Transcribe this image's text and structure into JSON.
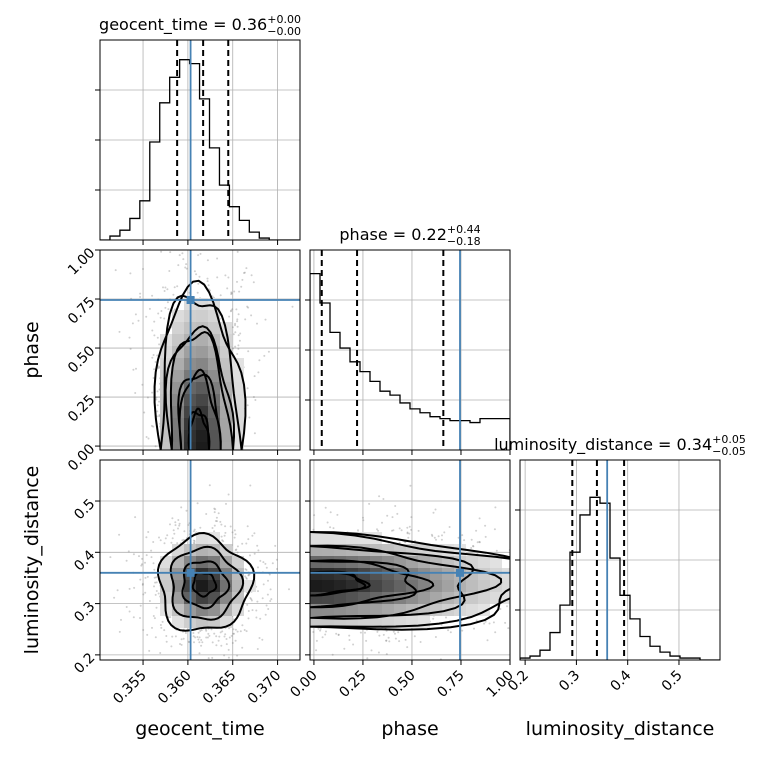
{
  "chart_data": {
    "type": "corner",
    "parameters": [
      {
        "name": "geocent_time",
        "title_prefix": "geocent_time = 0.36",
        "title_sup": "+0.00",
        "title_sub": "−0.00",
        "range": [
          0.3502,
          0.3725
        ],
        "ticks": [
          0.355,
          0.36,
          0.365,
          0.37
        ],
        "tick_labels": [
          "0.355",
          "0.360",
          "0.365",
          "0.370"
        ],
        "truth": 0.3603,
        "quantiles": [
          0.3588,
          0.3617,
          0.3645
        ],
        "hist": {
          "edges_start": 0.3502,
          "bin_width": 0.00111,
          "counts": [
            0,
            0.02,
            0.05,
            0.11,
            0.2,
            0.5,
            0.7,
            0.83,
            0.92,
            0.9,
            0.72,
            0.47,
            0.28,
            0.17,
            0.1,
            0.04,
            0.01,
            0,
            0,
            0
          ]
        }
      },
      {
        "name": "phase",
        "title_prefix": "phase = 0.22",
        "title_sup": "+0.44",
        "title_sub": "−0.18",
        "range": [
          -0.02,
          1.0
        ],
        "ticks": [
          0.0,
          0.25,
          0.5,
          0.75,
          1.0
        ],
        "tick_labels": [
          "0.00",
          "0.25",
          "0.50",
          "0.75",
          "1.00"
        ],
        "truth": 0.745,
        "quantiles": [
          0.04,
          0.22,
          0.66
        ],
        "hist": {
          "edges_start": -0.02,
          "bin_width": 0.051,
          "counts": [
            0.9,
            0.75,
            0.6,
            0.52,
            0.45,
            0.4,
            0.35,
            0.3,
            0.28,
            0.24,
            0.21,
            0.19,
            0.17,
            0.16,
            0.15,
            0.15,
            0.14,
            0.16,
            0.16,
            0.16
          ]
        }
      },
      {
        "name": "luminosity_distance",
        "title_prefix": "luminosity_distance = 0.34",
        "title_sup": "+0.05",
        "title_sub": "−0.05",
        "range": [
          0.19,
          0.58
        ],
        "ticks": [
          0.2,
          0.3,
          0.4,
          0.5
        ],
        "tick_labels": [
          "0.2",
          "0.3",
          "0.4",
          "0.5"
        ],
        "truth": 0.36,
        "quantiles": [
          0.292,
          0.34,
          0.393
        ],
        "hist": {
          "edges_start": 0.19,
          "bin_width": 0.0195,
          "counts": [
            0.01,
            0.02,
            0.05,
            0.14,
            0.28,
            0.55,
            0.74,
            0.83,
            0.8,
            0.52,
            0.33,
            0.21,
            0.12,
            0.07,
            0.04,
            0.02,
            0.01,
            0.01,
            0,
            0
          ]
        }
      }
    ],
    "pairs": [
      {
        "x": "geocent_time",
        "y": "phase",
        "truth": [
          0.3603,
          0.745
        ],
        "center": [
          0.3612,
          0.1
        ],
        "spread": [
          0.0022,
          0.26
        ]
      },
      {
        "x": "geocent_time",
        "y": "luminosity_distance",
        "truth": [
          0.3603,
          0.36
        ],
        "center": [
          0.3618,
          0.338
        ],
        "spread": [
          0.0025,
          0.045
        ]
      },
      {
        "x": "phase",
        "y": "luminosity_distance",
        "truth": [
          0.745,
          0.36
        ],
        "center": [
          0.08,
          0.34
        ],
        "spread": [
          0.35,
          0.045
        ]
      }
    ],
    "truth_color": "#4682b4",
    "grid": true
  }
}
